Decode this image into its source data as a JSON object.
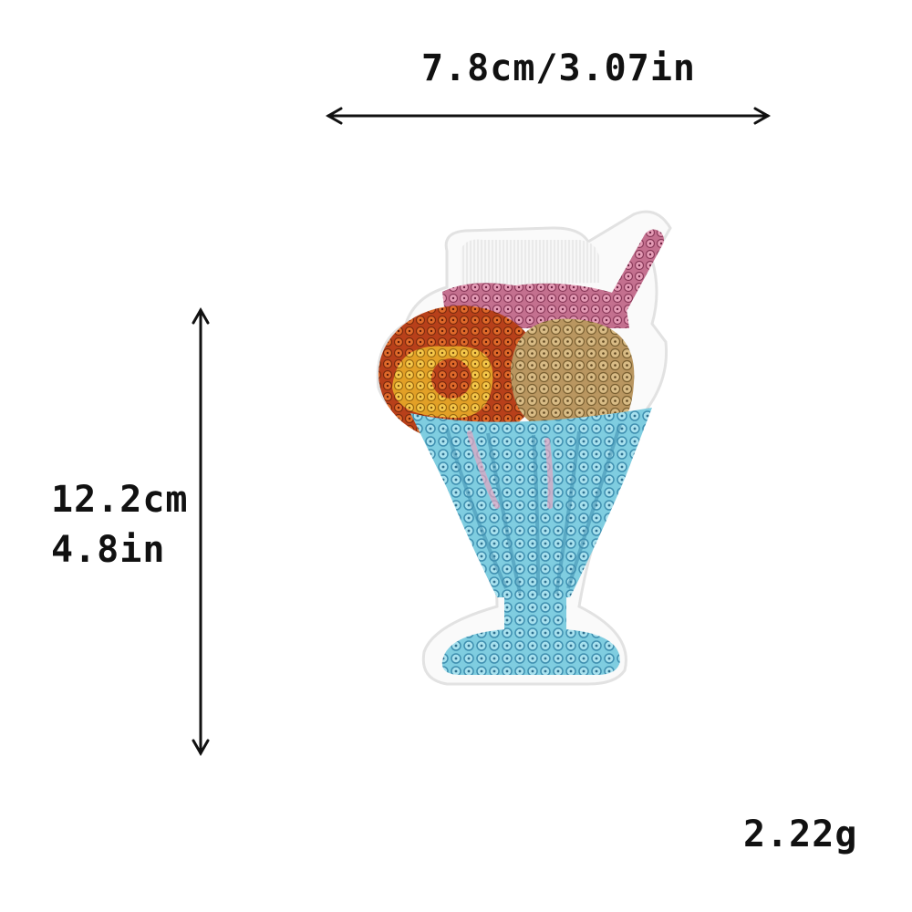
{
  "dimensions": {
    "width_label": "7.8cm/3.07in",
    "height_label_cm": "12.2cm",
    "height_label_in": "4.8in",
    "weight_label": "2.22g"
  },
  "product": {
    "icon": "sequin-ice-cream-sundae-patch",
    "colors": {
      "glass": "#6fbfd6",
      "glass_dark": "#3f8fb0",
      "scoop_left": "#c1441a",
      "scoop_left_highlight": "#e8a12a",
      "scoop_right": "#c9a66b",
      "straw": "#d9709a",
      "topping_pink": "#d98aa8",
      "whipped_cream": "#f4f4f4"
    }
  }
}
